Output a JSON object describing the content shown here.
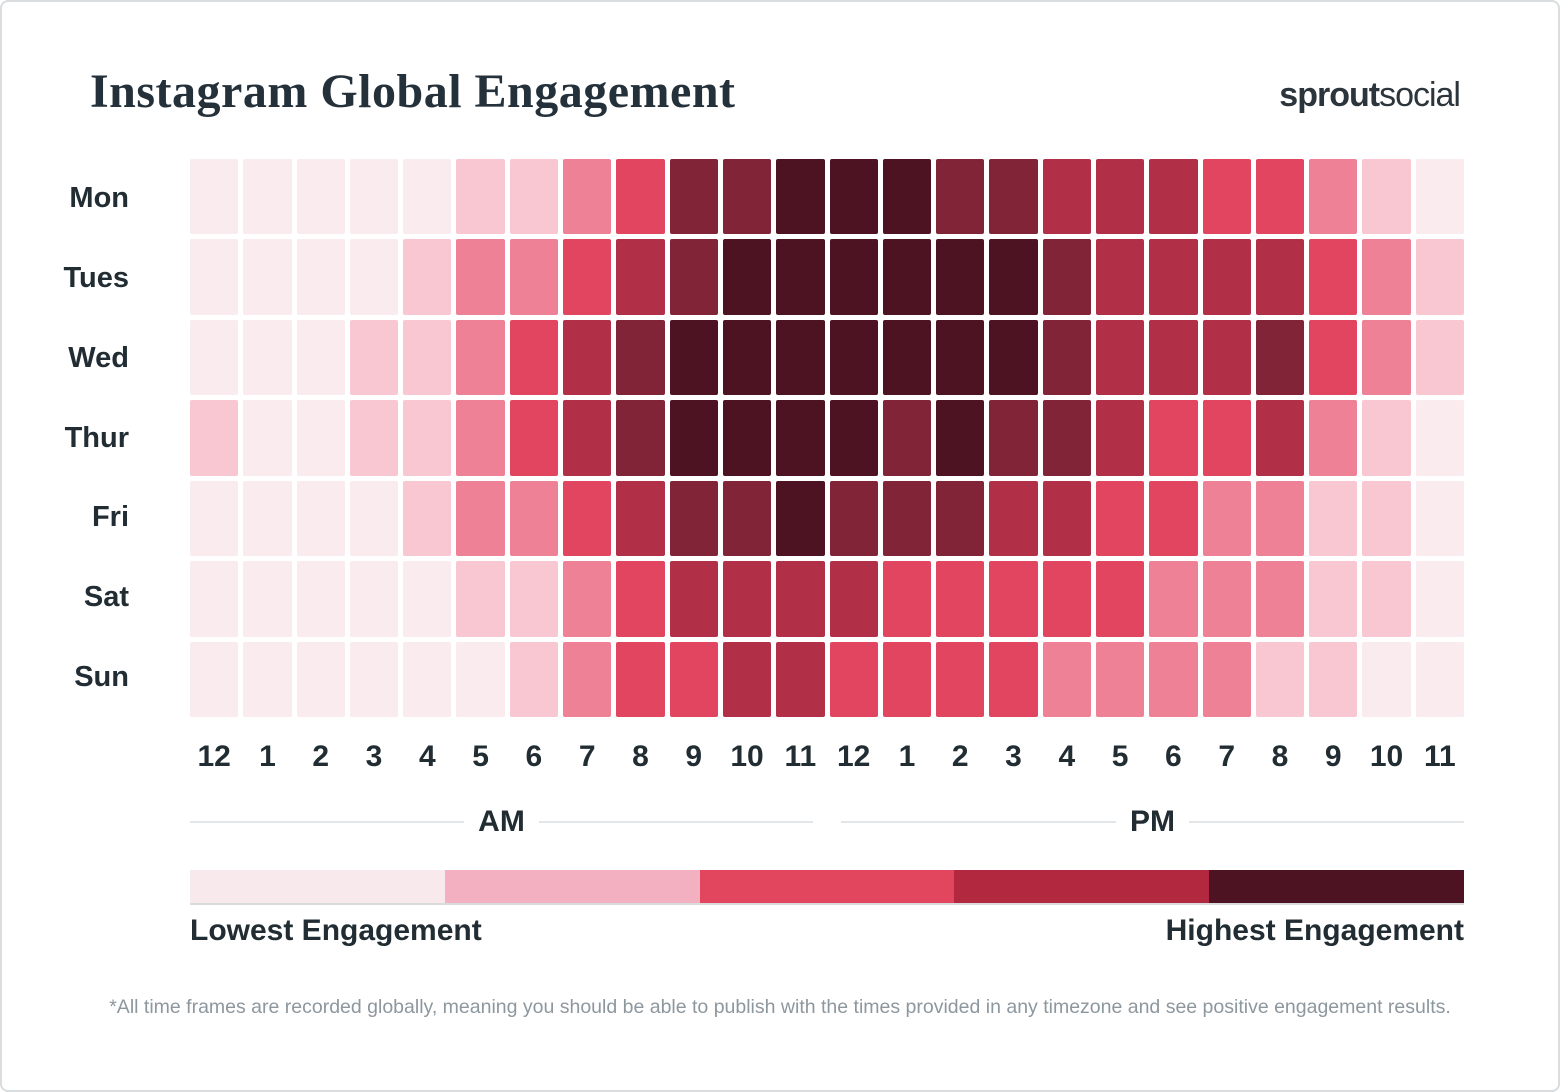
{
  "header": {
    "title": "Instagram Global Engagement",
    "logo_bold": "sprout",
    "logo_light": "social"
  },
  "chart_data": {
    "type": "heatmap",
    "title": "Instagram Global Engagement",
    "x_axis": "Hour of day (12AM-11PM)",
    "y_axis": "Day of week",
    "am_label": "AM",
    "pm_label": "PM",
    "hour_labels": [
      "12",
      "1",
      "2",
      "3",
      "4",
      "5",
      "6",
      "7",
      "8",
      "9",
      "10",
      "11",
      "12",
      "1",
      "2",
      "3",
      "4",
      "5",
      "6",
      "7",
      "8",
      "9",
      "10",
      "11"
    ],
    "scale_note": "engagement level 0 = lowest, 6 = highest",
    "palette": [
      "#f9ebee",
      "#f8c7d2",
      "#ee8195",
      "#e1455f",
      "#b13048",
      "#822437",
      "#4d1322"
    ],
    "rows": [
      {
        "day": "Mon",
        "levels": [
          0,
          0,
          0,
          0,
          0,
          1,
          1,
          2,
          3,
          5,
          5,
          6,
          6,
          6,
          5,
          5,
          4,
          4,
          4,
          3,
          3,
          2,
          1,
          0
        ]
      },
      {
        "day": "Tues",
        "levels": [
          0,
          0,
          0,
          0,
          1,
          2,
          2,
          3,
          4,
          5,
          6,
          6,
          6,
          6,
          6,
          6,
          5,
          4,
          4,
          4,
          4,
          3,
          2,
          1
        ]
      },
      {
        "day": "Wed",
        "levels": [
          0,
          0,
          0,
          1,
          1,
          2,
          3,
          4,
          5,
          6,
          6,
          6,
          6,
          6,
          6,
          6,
          5,
          4,
          4,
          4,
          5,
          3,
          2,
          1
        ]
      },
      {
        "day": "Thur",
        "levels": [
          1,
          0,
          0,
          1,
          1,
          2,
          3,
          4,
          5,
          6,
          6,
          6,
          6,
          5,
          6,
          5,
          5,
          4,
          3,
          3,
          4,
          2,
          1,
          0
        ]
      },
      {
        "day": "Fri",
        "levels": [
          0,
          0,
          0,
          0,
          1,
          2,
          2,
          3,
          4,
          5,
          5,
          6,
          5,
          5,
          5,
          4,
          4,
          3,
          3,
          2,
          2,
          1,
          1,
          0
        ]
      },
      {
        "day": "Sat",
        "levels": [
          0,
          0,
          0,
          0,
          0,
          1,
          1,
          2,
          3,
          4,
          4,
          4,
          4,
          3,
          3,
          3,
          3,
          3,
          2,
          2,
          2,
          1,
          1,
          0
        ]
      },
      {
        "day": "Sun",
        "levels": [
          0,
          0,
          0,
          0,
          0,
          0,
          1,
          2,
          3,
          3,
          4,
          4,
          3,
          3,
          3,
          3,
          2,
          2,
          2,
          2,
          1,
          1,
          0,
          0
        ]
      }
    ]
  },
  "legend": {
    "colors": [
      "#f8e9ec",
      "#f3b0c0",
      "#e2465f",
      "#b2283f",
      "#4d1322"
    ],
    "lowest_label": "Lowest Engagement",
    "highest_label": "Highest Engagement"
  },
  "footnote": "*All time frames are recorded globally, meaning you should be able to publish with the times provided in any timezone and see positive engagement results."
}
